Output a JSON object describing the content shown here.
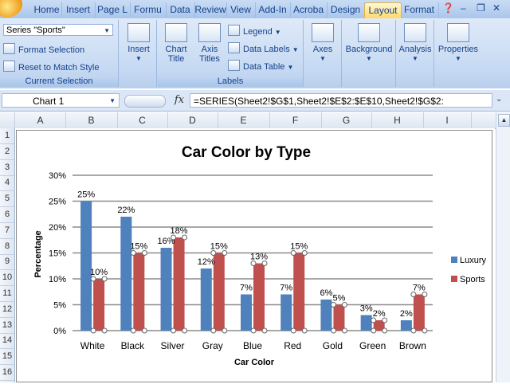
{
  "ribbon_tabs": [
    "Home",
    "Insert",
    "Page L",
    "Formu",
    "Data",
    "Review",
    "View",
    "Add-In",
    "Acroba",
    "Design",
    "Layout",
    "Format"
  ],
  "active_tab": "Layout",
  "current_selection": {
    "dropdown_value": "Series \"Sports\"",
    "format_selection": "Format Selection",
    "reset_style": "Reset to Match Style",
    "label": "Current Selection"
  },
  "insert_group": {
    "button": "Insert"
  },
  "labels_group": {
    "chart_title": "Chart Title",
    "axis_titles": "Axis Titles",
    "legend": "Legend",
    "data_labels": "Data Labels",
    "data_table": "Data Table",
    "label": "Labels"
  },
  "axes_button": "Axes",
  "background_button": "Background",
  "analysis_button": "Analysis",
  "properties_button": "Properties",
  "formula_bar": {
    "name_box": "Chart 1",
    "fx": "fx",
    "formula": "=SERIES(Sheet2!$G$1,Sheet2!$E$2:$E$10,Sheet2!$G$2:"
  },
  "columns": [
    "A",
    "B",
    "C",
    "D",
    "E",
    "F",
    "G",
    "H",
    "I"
  ],
  "rows": [
    "1",
    "2",
    "3",
    "4",
    "5",
    "6",
    "7",
    "8",
    "9",
    "10",
    "11",
    "12",
    "13",
    "14",
    "15",
    "16"
  ],
  "colors": {
    "luxury": "#4f81bd",
    "sports": "#c0504d",
    "accent_tab": "#ffd86a"
  },
  "chart_data": {
    "type": "bar",
    "title": "Car Color by Type",
    "xlabel": "Car Color",
    "ylabel": "Percentage",
    "categories": [
      "White",
      "Black",
      "Silver",
      "Gray",
      "Blue",
      "Red",
      "Gold",
      "Green",
      "Brown"
    ],
    "series": [
      {
        "name": "Luxury",
        "values": [
          25,
          22,
          16,
          12,
          7,
          7,
          6,
          3,
          2
        ],
        "labels": [
          "25%",
          "22%",
          "16%",
          "12%",
          "7%",
          "7%",
          "6%",
          "3%",
          "2%"
        ]
      },
      {
        "name": "Sports",
        "values": [
          10,
          15,
          18,
          15,
          13,
          15,
          5,
          2,
          7
        ],
        "labels": [
          "10%",
          "15%",
          "18%",
          "15%",
          "13%",
          "15%",
          "5%",
          "2%",
          "7%"
        ]
      }
    ],
    "yticks": [
      "0%",
      "5%",
      "10%",
      "15%",
      "20%",
      "25%",
      "30%"
    ],
    "ylim": [
      0,
      30
    ],
    "grid": true,
    "legend": "right",
    "selected_series": "Sports"
  }
}
